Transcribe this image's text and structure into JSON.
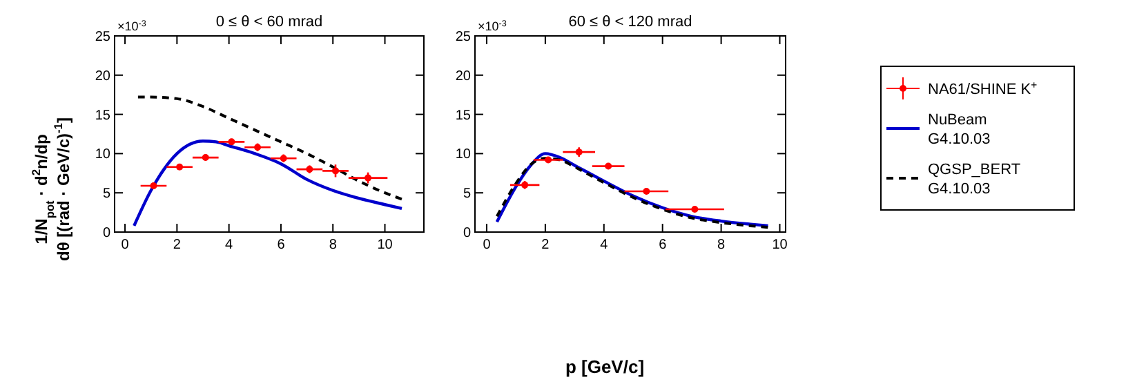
{
  "chart_data": [
    {
      "type": "scatter",
      "title": "0 ≤ θ < 60 mrad",
      "ylabel": "1/N$_{pot}$ · d$^{2}$n/dp dθ [(rad · GeV/c)$^{-1}$]",
      "annotations": [
        "×10$^{-3}$"
      ],
      "xlim": [
        -0.4,
        11.5
      ],
      "xticks": [
        0,
        2,
        4,
        6,
        8,
        10
      ],
      "ylim": [
        0,
        25
      ],
      "yticks": [
        0,
        5,
        10,
        15,
        20,
        25
      ],
      "legend": false,
      "series": [
        {
          "color": "#ff0000",
          "marker": "circle",
          "x": [
            1.1,
            2.1,
            3.1,
            4.1,
            5.1,
            6.1,
            7.1,
            8.1,
            9.35
          ],
          "values": [
            5.9,
            8.3,
            9.5,
            11.5,
            10.8,
            9.4,
            8.0,
            7.8,
            6.9
          ],
          "errors": [
            0.4,
            0.3,
            0.4,
            0.4,
            0.5,
            0.5,
            0.5,
            0.8,
            0.7
          ],
          "xerrors": [
            0.5,
            0.5,
            0.5,
            0.5,
            0.5,
            0.5,
            0.5,
            0.5,
            0.75
          ]
        },
        {
          "type": "line",
          "color": "#0000cc",
          "line_style": "solid",
          "x": [
            0.35,
            1,
            1.5,
            2,
            2.5,
            3,
            3.5,
            4,
            5,
            6,
            7,
            8,
            9,
            10,
            10.65
          ],
          "values": [
            0.8,
            5.3,
            8,
            10,
            11.2,
            11.6,
            11.5,
            11,
            10,
            8.7,
            6.7,
            5.3,
            4.3,
            3.5,
            3
          ]
        },
        {
          "type": "line",
          "color": "#000000",
          "line_style": "dashed",
          "x": [
            0.5,
            1,
            2,
            3,
            4,
            5,
            6,
            7,
            8,
            9,
            10,
            10.65
          ],
          "values": [
            17.2,
            17.2,
            17,
            16,
            14.5,
            13,
            11.5,
            10,
            8.3,
            6.5,
            5,
            4.2
          ]
        }
      ]
    },
    {
      "type": "scatter",
      "title": "60 ≤ θ < 120 mrad",
      "xlabel": "p [GeV/c]",
      "annotations": [
        "×10$^{-3}$"
      ],
      "xlim": [
        -0.4,
        10.2
      ],
      "xticks": [
        0,
        2,
        4,
        6,
        8,
        10
      ],
      "ylim": [
        0,
        25
      ],
      "yticks": [
        0,
        5,
        10,
        15,
        20,
        25
      ],
      "legend": "right",
      "series": [
        {
          "name": "NA61/SHINE K$^{+}$",
          "color": "#ff0000",
          "marker": "circle",
          "x": [
            1.3,
            2.1,
            3.15,
            4.15,
            5.45,
            7.1
          ],
          "values": [
            6.0,
            9.2,
            10.2,
            8.4,
            5.2,
            2.9
          ],
          "errors": [
            0.5,
            0.4,
            0.6,
            0.4,
            0.3,
            0.3
          ],
          "xerrors": [
            0.5,
            0.5,
            0.55,
            0.55,
            0.75,
            1
          ]
        },
        {
          "type": "line",
          "name": "NuBeam G4.10.03",
          "color": "#0000cc",
          "line_style": "solid",
          "x": [
            0.35,
            1,
            1.5,
            2,
            2.5,
            3,
            4,
            5,
            6,
            7,
            8,
            9,
            9.6
          ],
          "values": [
            1.3,
            5.8,
            8.5,
            10,
            9.5,
            8.5,
            6.5,
            4.6,
            3.1,
            2,
            1.4,
            1,
            0.8
          ]
        },
        {
          "type": "line",
          "name": "QGSP_BERT G4.10.03",
          "color": "#000000",
          "line_style": "dashed",
          "x": [
            0.35,
            1,
            1.5,
            2,
            2.5,
            3,
            4,
            5,
            6,
            7,
            8,
            9,
            9.6
          ],
          "values": [
            2,
            6.2,
            8.6,
            9.4,
            9.2,
            8.3,
            6.3,
            4.4,
            2.9,
            1.8,
            1.2,
            0.8,
            0.6
          ]
        }
      ]
    }
  ]
}
